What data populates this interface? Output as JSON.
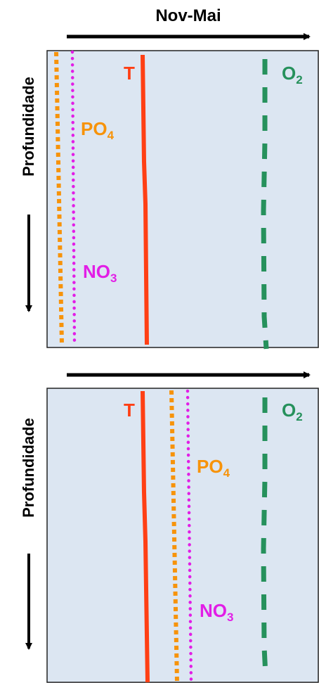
{
  "header": {
    "title": "Nov-Mai"
  },
  "colors": {
    "panel_bg": "#dce6f2",
    "temperature": "#ff3f14",
    "oxygen": "#26915c",
    "phosphate": "#f7930a",
    "nitrate": "#e21ee6"
  },
  "panels": [
    {
      "y_axis_label": "Profundidade",
      "labels": {
        "T": "T",
        "O2_base": "O",
        "O2_sub": "2",
        "PO4_base": "PO",
        "PO4_sub": "4",
        "NO3_base": "NO",
        "NO3_sub": "3"
      }
    },
    {
      "y_axis_label": "Profundidade",
      "labels": {
        "T": "T",
        "O2_base": "O",
        "O2_sub": "2",
        "PO4_base": "PO",
        "PO4_sub": "4",
        "NO3_base": "NO",
        "NO3_sub": "3"
      }
    }
  ]
}
